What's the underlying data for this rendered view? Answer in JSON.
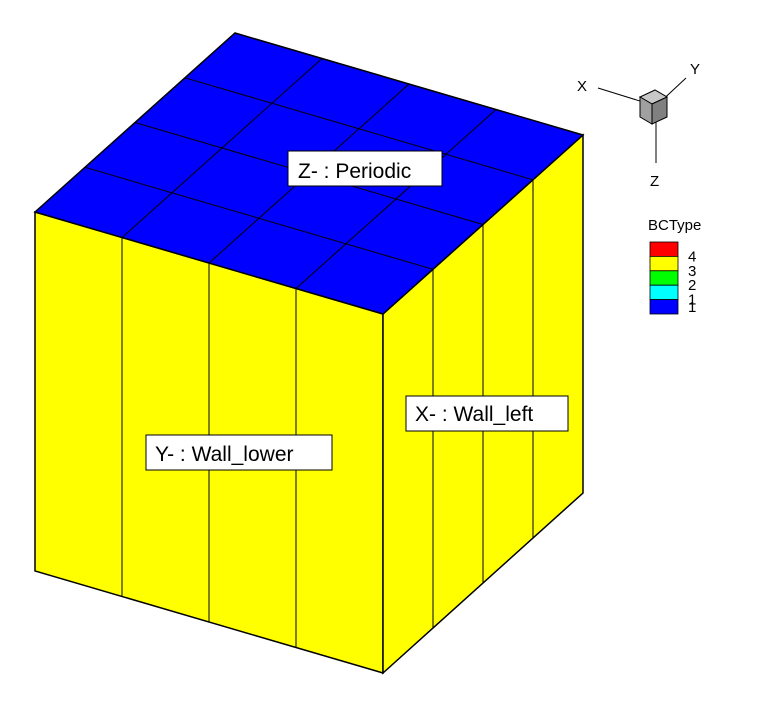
{
  "faces": {
    "top": {
      "label": "Z- : Periodic",
      "color": "#0000ff",
      "divisions": 4
    },
    "front": {
      "label": "Y- : Wall_lower",
      "color": "#ffff00",
      "divisions": 4
    },
    "right": {
      "label": "X- : Wall_left",
      "color": "#ffff00",
      "divisions": 4
    }
  },
  "axis_triad": {
    "x_label": "X",
    "y_label": "Y",
    "z_label": "Z",
    "cube_color": "#a0a0a0"
  },
  "legend": {
    "title": "BCType",
    "entries": [
      {
        "value": "4",
        "color": "#ff0000"
      },
      {
        "value": "3",
        "color": "#ffff00"
      },
      {
        "value": "2",
        "color": "#00ff00"
      },
      {
        "value": "1",
        "color": "#00ffff"
      },
      {
        "value": "",
        "color": "#0000ff"
      }
    ],
    "bottom_label": "1"
  }
}
